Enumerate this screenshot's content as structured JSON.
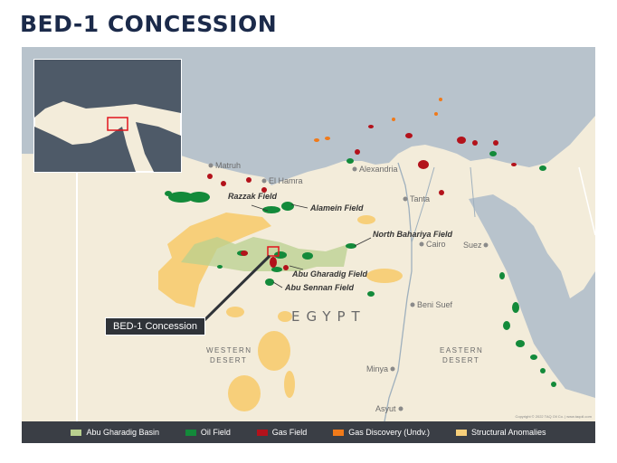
{
  "title": "BED-1 CONCESSION",
  "callout": "BED-1 Concession",
  "cities": [
    "Matruh",
    "El Hamra",
    "Alexandria",
    "Tanta",
    "Cairo",
    "Suez",
    "Beni Suef",
    "Minya",
    "Asyut"
  ],
  "fields": [
    "Razzak Field",
    "Alamein Field",
    "North Bahariya Field",
    "Abu Gharadig Field",
    "Abu Sennan Field"
  ],
  "country": "EGYPT",
  "regions": {
    "western": [
      "WESTERN",
      "DESERT"
    ],
    "eastern": [
      "EASTERN",
      "DESERT"
    ]
  },
  "copyright": "Copyright © 2022 TAQ Oil Co. | www.taqoil.com",
  "legend": [
    {
      "label": "Abu Gharadig Basin",
      "color": "#b9d08f"
    },
    {
      "label": "Oil Field",
      "color": "#138a3a"
    },
    {
      "label": "Gas Field",
      "color": "#b3121b"
    },
    {
      "label": "Gas Discovery (Undv.)",
      "color": "#f07a1a"
    },
    {
      "label": "Structural Anomalies",
      "color": "#f7cf7a"
    }
  ],
  "colors": {
    "sea": "#b8c3cc",
    "land": "#f3ecda",
    "title": "#1b2a4a"
  }
}
